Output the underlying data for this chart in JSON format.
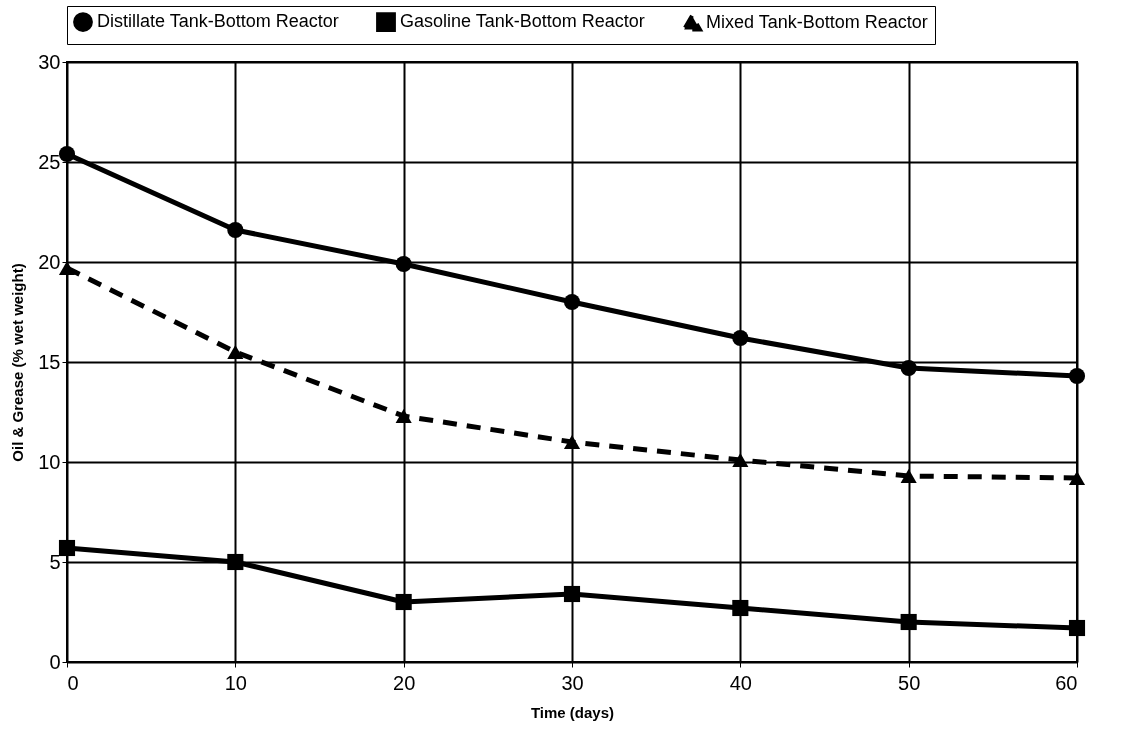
{
  "chart_data": {
    "type": "line",
    "xlabel": "Time (days)",
    "ylabel": "Oil & Grease (% wet weight)",
    "x": [
      0,
      10,
      20,
      30,
      40,
      50,
      60
    ],
    "series": [
      {
        "name": "Distillate Tank-Bottom Reactor",
        "color": "#000000",
        "marker": "circle",
        "line_style": "solid",
        "values": [
          25.4,
          21.6,
          19.9,
          18.0,
          16.2,
          14.7,
          14.3
        ]
      },
      {
        "name": "Gasoline Tank-Bottom Reactor",
        "color": "#000000",
        "marker": "square",
        "line_style": "solid",
        "values": [
          5.7,
          5.0,
          3.0,
          3.4,
          2.7,
          2.0,
          1.7
        ]
      },
      {
        "name": "Mixed Tank-Bottom Reactor",
        "color": "#000000",
        "marker": "triangle",
        "line_style": "dashed",
        "values": [
          19.7,
          15.5,
          12.3,
          11.0,
          10.1,
          9.3,
          9.2
        ]
      }
    ],
    "xlim": [
      0,
      60
    ],
    "xticks": [
      0,
      10,
      20,
      30,
      40,
      50,
      60
    ],
    "ylim": [
      0,
      30
    ],
    "yticks": [
      0,
      5,
      10,
      15,
      20,
      25,
      30
    ],
    "grid": true,
    "legend": "top"
  }
}
